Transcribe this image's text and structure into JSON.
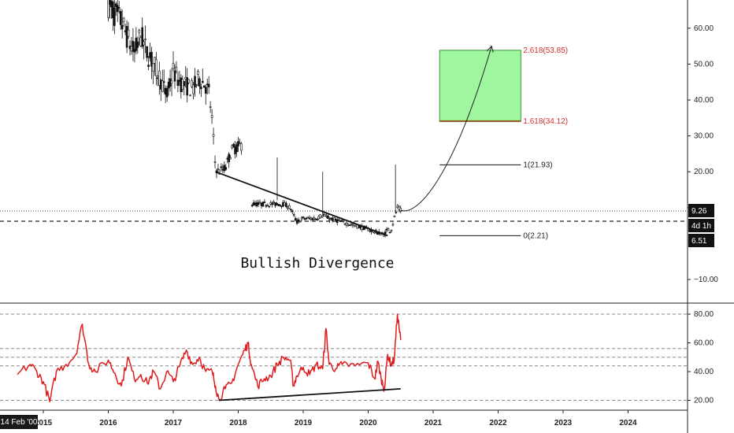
{
  "chart_data": [
    {
      "type": "candlestick",
      "panel": "price",
      "y_ticks": [
        "60.00",
        "50.00",
        "40.00",
        "30.00",
        "20.00",
        "10.00",
        "−10.00"
      ],
      "ylim": [
        -16,
        68
      ],
      "xlim": [
        2015.0,
        2025.0
      ],
      "price_path": [
        [
          2016.0,
          67
        ],
        [
          2016.1,
          64
        ],
        [
          2016.2,
          62
        ],
        [
          2016.3,
          57
        ],
        [
          2016.4,
          53
        ],
        [
          2016.5,
          58
        ],
        [
          2016.6,
          53
        ],
        [
          2016.7,
          50
        ],
        [
          2016.8,
          46
        ],
        [
          2016.9,
          41
        ],
        [
          2017.0,
          48
        ],
        [
          2017.1,
          45
        ],
        [
          2017.2,
          44
        ],
        [
          2017.3,
          43
        ],
        [
          2017.4,
          46
        ],
        [
          2017.5,
          44
        ],
        [
          2017.55,
          42
        ],
        [
          2017.6,
          34
        ],
        [
          2017.65,
          21
        ],
        [
          2017.7,
          20
        ],
        [
          2017.8,
          21
        ],
        [
          2017.9,
          26
        ],
        [
          2018.0,
          27
        ],
        [
          2018.1,
          28
        ],
        [
          2018.2,
          11
        ],
        [
          2018.3,
          11
        ],
        [
          2018.4,
          11
        ],
        [
          2018.5,
          11
        ],
        [
          2018.7,
          11
        ],
        [
          2018.8,
          10
        ],
        [
          2018.9,
          6
        ],
        [
          2019.0,
          7
        ],
        [
          2019.2,
          7
        ],
        [
          2019.3,
          8
        ],
        [
          2019.4,
          7
        ],
        [
          2019.6,
          6
        ],
        [
          2019.8,
          5
        ],
        [
          2020.0,
          4
        ],
        [
          2020.15,
          3
        ],
        [
          2020.25,
          2.5
        ],
        [
          2020.3,
          4
        ],
        [
          2020.35,
          3.5
        ],
        [
          2020.4,
          7
        ],
        [
          2020.45,
          10
        ],
        [
          2020.5,
          9.3
        ]
      ],
      "spikes": [
        [
          2018.6,
          12,
          24
        ],
        [
          2019.3,
          8,
          20
        ],
        [
          2020.42,
          9,
          22
        ]
      ],
      "current_price": "9.26",
      "countdown": "4d 1h",
      "dashed_level": "6.51",
      "fib_levels": [
        {
          "label": "2.618(53.85)",
          "value": 53.85,
          "color": "#d23030"
        },
        {
          "label": "1.618(34.12)",
          "value": 34.12,
          "color": "#d23030"
        },
        {
          "label": "1(21.93)",
          "value": 21.93,
          "color": "#222222"
        },
        {
          "label": "0(2.21)",
          "value": 2.21,
          "color": "#222222"
        }
      ],
      "target_zone": {
        "from_x": 2021.1,
        "to_x": 2022.35,
        "low": 34.12,
        "high": 53.85,
        "color": "#9ef79e"
      },
      "trendline": [
        [
          2017.65,
          20
        ],
        [
          2020.3,
          2.2
        ]
      ],
      "projection_curve": [
        [
          2020.5,
          9.3
        ],
        [
          2020.75,
          7.5
        ],
        [
          2021.3,
          18
        ],
        [
          2021.9,
          55
        ]
      ],
      "annotation": "Bullish Divergence"
    },
    {
      "type": "line",
      "panel": "indicator",
      "y_ticks": [
        "80.00",
        "60.00",
        "40.00",
        "20.00"
      ],
      "ylim": [
        15,
        86
      ],
      "levels": [
        80,
        56,
        50,
        44,
        20
      ],
      "series_color": "#e01b1b",
      "values": [
        [
          2014.6,
          38
        ],
        [
          2014.8,
          45
        ],
        [
          2014.9,
          40
        ],
        [
          2015.0,
          33
        ],
        [
          2015.1,
          19
        ],
        [
          2015.2,
          40
        ],
        [
          2015.35,
          45
        ],
        [
          2015.5,
          52
        ],
        [
          2015.6,
          73
        ],
        [
          2015.7,
          45
        ],
        [
          2015.8,
          40
        ],
        [
          2016.0,
          48
        ],
        [
          2016.1,
          39
        ],
        [
          2016.2,
          30
        ],
        [
          2016.3,
          50
        ],
        [
          2016.4,
          35
        ],
        [
          2016.5,
          38
        ],
        [
          2016.6,
          32
        ],
        [
          2016.7,
          40
        ],
        [
          2016.8,
          28
        ],
        [
          2016.9,
          40
        ],
        [
          2017.0,
          33
        ],
        [
          2017.1,
          44
        ],
        [
          2017.2,
          55
        ],
        [
          2017.3,
          45
        ],
        [
          2017.4,
          50
        ],
        [
          2017.5,
          40
        ],
        [
          2017.6,
          40
        ],
        [
          2017.65,
          30
        ],
        [
          2017.7,
          21
        ],
        [
          2017.8,
          28
        ],
        [
          2017.9,
          32
        ],
        [
          2018.0,
          45
        ],
        [
          2018.1,
          55
        ],
        [
          2018.15,
          60
        ],
        [
          2018.2,
          45
        ],
        [
          2018.3,
          30
        ],
        [
          2018.4,
          35
        ],
        [
          2018.5,
          37
        ],
        [
          2018.6,
          45
        ],
        [
          2018.7,
          50
        ],
        [
          2018.8,
          48
        ],
        [
          2018.85,
          30
        ],
        [
          2018.9,
          37
        ],
        [
          2019.0,
          43
        ],
        [
          2019.1,
          38
        ],
        [
          2019.2,
          45
        ],
        [
          2019.3,
          42
        ],
        [
          2019.35,
          70
        ],
        [
          2019.4,
          45
        ],
        [
          2019.5,
          42
        ],
        [
          2019.6,
          45
        ],
        [
          2019.8,
          44
        ],
        [
          2020.0,
          46
        ],
        [
          2020.1,
          35
        ],
        [
          2020.15,
          47
        ],
        [
          2020.2,
          35
        ],
        [
          2020.25,
          28
        ],
        [
          2020.3,
          52
        ],
        [
          2020.35,
          45
        ],
        [
          2020.4,
          48
        ],
        [
          2020.45,
          80
        ],
        [
          2020.5,
          62
        ]
      ],
      "trendline": [
        [
          2017.7,
          20
        ],
        [
          2020.5,
          28
        ]
      ]
    }
  ],
  "x_axis": {
    "labels": [
      "2015",
      "2016",
      "2017",
      "2018",
      "2019",
      "2020",
      "2021",
      "2022",
      "2023",
      "2024"
    ],
    "cursor_label": "14 Feb '00"
  }
}
